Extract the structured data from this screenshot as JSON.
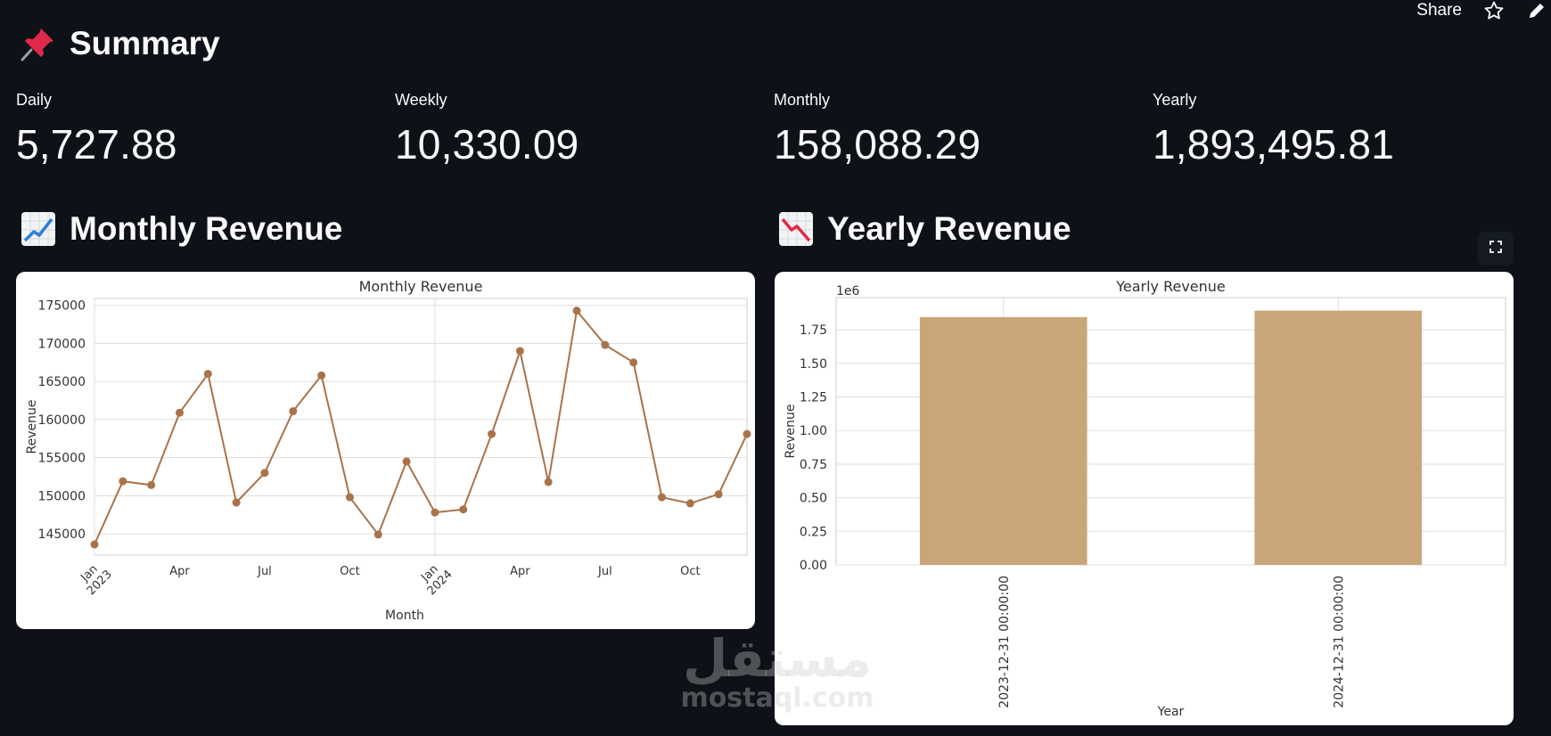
{
  "topbar": {
    "share_label": "Share",
    "star_icon": "star-icon",
    "edit_icon": "pencil-icon"
  },
  "summary": {
    "title": "Summary",
    "icon": "pushpin-icon"
  },
  "metrics": [
    {
      "label": "Daily",
      "value": "5,727.88"
    },
    {
      "label": "Weekly",
      "value": "10,330.09"
    },
    {
      "label": "Monthly",
      "value": "158,088.29"
    },
    {
      "label": "Yearly",
      "value": "1,893,495.81"
    }
  ],
  "monthly_section": {
    "title": "Monthly Revenue",
    "icon": "chart-increasing-icon"
  },
  "yearly_section": {
    "title": "Yearly Revenue",
    "icon": "chart-decreasing-icon"
  },
  "watermark": {
    "arabic": "مستقل",
    "latin": "mostaql.com"
  },
  "chart_data": [
    {
      "type": "line",
      "title": "Monthly Revenue",
      "xlabel": "Month",
      "ylabel": "Revenue",
      "x": [
        "2023-01",
        "2023-02",
        "2023-03",
        "2023-04",
        "2023-05",
        "2023-06",
        "2023-07",
        "2023-08",
        "2023-09",
        "2023-10",
        "2023-11",
        "2023-12",
        "2024-01",
        "2024-02",
        "2024-03",
        "2024-04",
        "2024-05",
        "2024-06",
        "2024-07",
        "2024-08",
        "2024-09",
        "2024-10",
        "2024-11",
        "2024-12"
      ],
      "values": [
        143600,
        151900,
        151400,
        160900,
        166000,
        149100,
        153000,
        161100,
        165800,
        149800,
        144900,
        154500,
        147800,
        148200,
        158100,
        169000,
        151800,
        174300,
        169800,
        167500,
        149800,
        149000,
        150200,
        158100
      ],
      "yticks": [
        "145000",
        "150000",
        "155000",
        "160000",
        "165000",
        "170000",
        "175000"
      ],
      "ylim": [
        142200,
        175900
      ],
      "xtick_labels": [
        {
          "month": "2023-01",
          "label": "Jan",
          "year": "2023"
        },
        {
          "month": "2023-04",
          "label": "Apr"
        },
        {
          "month": "2023-07",
          "label": "Jul"
        },
        {
          "month": "2023-10",
          "label": "Oct"
        },
        {
          "month": "2024-01",
          "label": "Jan",
          "year": "2024"
        },
        {
          "month": "2024-04",
          "label": "Apr"
        },
        {
          "month": "2024-07",
          "label": "Jul"
        },
        {
          "month": "2024-10",
          "label": "Oct"
        }
      ],
      "line_color": "#a9734a",
      "grid": true
    },
    {
      "type": "bar",
      "title": "Yearly Revenue",
      "xlabel": "Year",
      "ylabel": "Revenue",
      "offset_text": "1e6",
      "categories": [
        "2023-12-31 00:00:00",
        "2024-12-31 00:00:00"
      ],
      "values": [
        1.845,
        1.893
      ],
      "yticks": [
        "0.00",
        "0.25",
        "0.50",
        "0.75",
        "1.00",
        "1.25",
        "1.50",
        "1.75"
      ],
      "ylim": [
        0,
        1.99
      ],
      "bar_color": "#c9a67a",
      "grid": true
    }
  ]
}
